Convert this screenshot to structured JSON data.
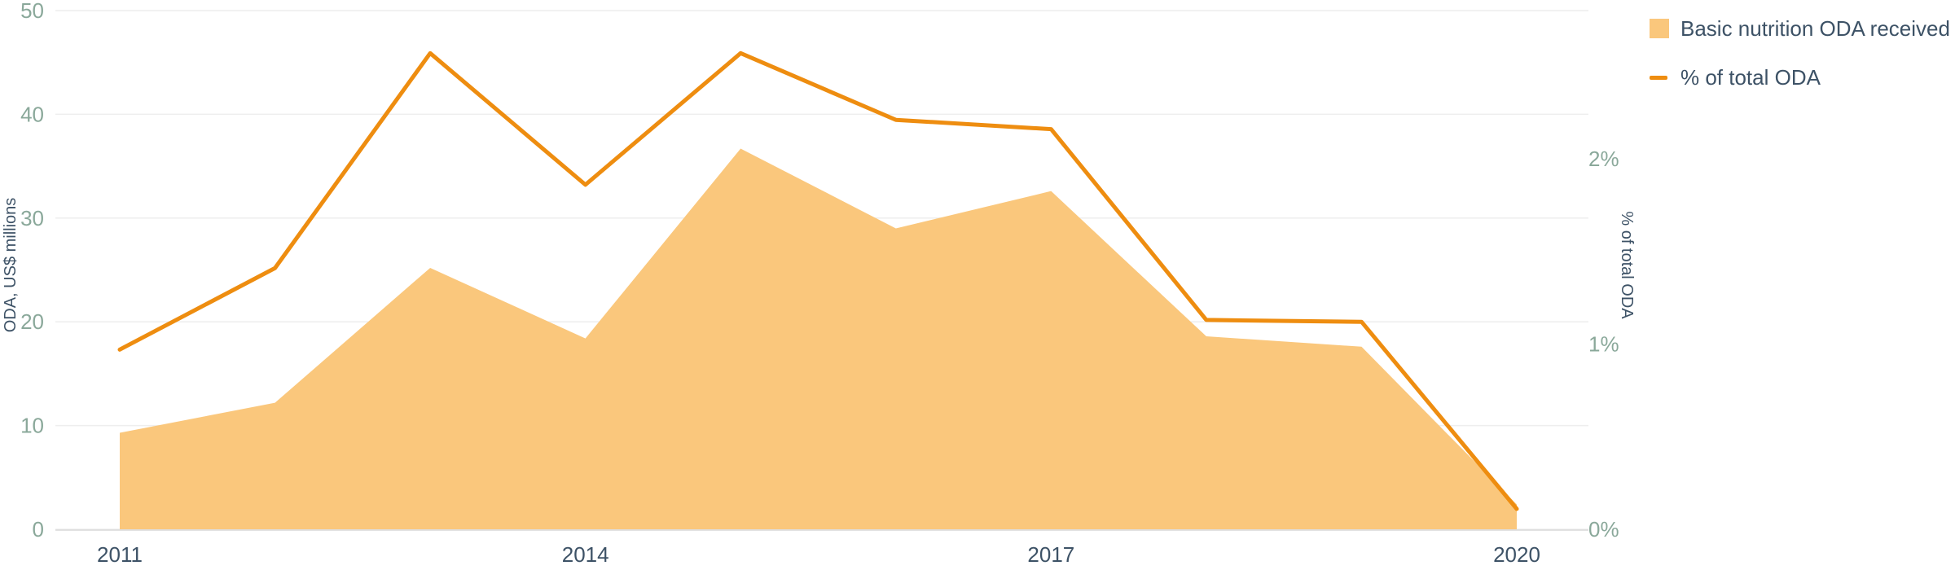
{
  "chart_data": {
    "type": "area",
    "x": [
      2011,
      2012,
      2013,
      2014,
      2015,
      2016,
      2017,
      2018,
      2019,
      2020
    ],
    "x_tick_labels": [
      "2011",
      "2014",
      "2017",
      "2020"
    ],
    "xlim": [
      2011,
      2020
    ],
    "series": [
      {
        "name": "Basic nutrition ODA received",
        "type": "area",
        "axis": "left",
        "color": "#fac77c",
        "values": [
          9.3,
          12.2,
          25.2,
          18.4,
          36.7,
          29.0,
          32.6,
          18.6,
          17.6,
          2.4
        ]
      },
      {
        "name": "% of total ODA",
        "type": "line",
        "axis": "right",
        "color": "#ee8d10",
        "values": [
          0.97,
          1.41,
          2.57,
          1.86,
          2.57,
          2.21,
          2.16,
          1.13,
          1.12,
          0.11
        ]
      }
    ],
    "ylabel": "ODA, US$ millions",
    "ylim": [
      0,
      50
    ],
    "y_ticks": [
      "0",
      "10",
      "20",
      "30",
      "40",
      "50"
    ],
    "y2label": "% of total ODA",
    "y2lim": [
      0,
      2.8
    ],
    "y2_ticks": [
      {
        "value": 0,
        "label": "0%"
      },
      {
        "value": 1,
        "label": "1%"
      },
      {
        "value": 2,
        "label": "2%"
      }
    ],
    "grid": true,
    "legend_position": "top-right"
  }
}
